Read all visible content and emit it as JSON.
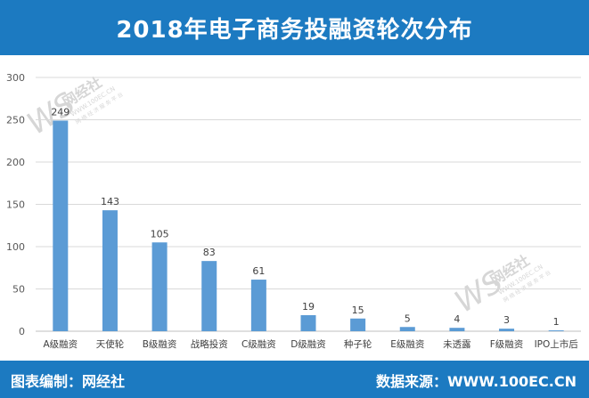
{
  "title": "2018年电子商务投融资轮次分布",
  "footer": {
    "left_label": "图表编制：",
    "left_value": "网经社",
    "right_label": "数据来源：",
    "right_value": "WWW.100EC.CN"
  },
  "watermark": {
    "logo": "WS",
    "name": "网经社",
    "url": "WWW.100EC.CN",
    "tagline": "网 络 经 济 服 务 平 台"
  },
  "colors": {
    "header": "#1c7ac1",
    "bar": "#5b9bd5",
    "grid": "#d9d9d9"
  },
  "chart_data": {
    "type": "bar",
    "categories": [
      "A级融资",
      "天使轮",
      "B级融资",
      "战略投资",
      "C级融资",
      "D级融资",
      "种子轮",
      "E级融资",
      "未透露",
      "F级融资",
      "IPO上市后"
    ],
    "values": [
      249,
      143,
      105,
      83,
      61,
      19,
      15,
      5,
      4,
      3,
      1
    ],
    "yticks": [
      0,
      50,
      100,
      150,
      200,
      250,
      300
    ],
    "ylim": [
      0,
      300
    ],
    "grid": true,
    "data_labels": true,
    "legend": "none"
  }
}
